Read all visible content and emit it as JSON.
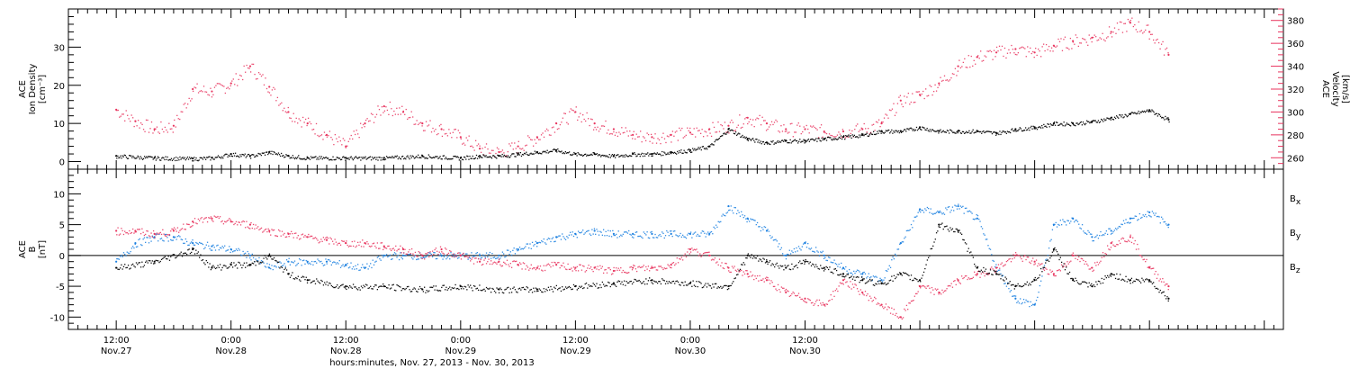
{
  "colors": {
    "black": "#000000",
    "pink": "#e8345e",
    "blue": "#1a7fe0"
  },
  "chart_data": [
    {
      "type": "scatter",
      "panel": "top",
      "ylabel_left": [
        "ACE",
        "Ion Density",
        "[cm⁻³]"
      ],
      "ylabel_right": [
        "ACE",
        "Velocity",
        "[km/s]"
      ],
      "ylim_left": [
        -2,
        40
      ],
      "yticks_left": [
        0,
        10,
        20,
        30
      ],
      "ylim_right": [
        250,
        390
      ],
      "yticks_right": [
        260,
        280,
        300,
        320,
        340,
        360,
        380
      ],
      "grid": false,
      "series": [
        {
          "axis": "left",
          "color": "#000000",
          "x_hours": [
            0,
            4,
            8,
            10,
            12,
            14,
            16,
            18,
            20,
            24,
            28,
            32,
            36,
            38,
            40,
            42,
            44,
            46,
            48,
            50,
            52,
            54,
            56,
            58,
            60,
            62,
            64,
            66,
            68,
            70,
            72,
            74,
            76,
            78,
            80,
            82,
            84,
            86,
            88,
            90,
            92,
            94,
            96,
            98,
            100,
            102,
            104,
            106,
            108,
            110
          ],
          "values": [
            1.5,
            1.0,
            0.8,
            1.0,
            2.0,
            1.5,
            2.5,
            1.5,
            1.0,
            1.0,
            1.0,
            1.5,
            1.0,
            1.5,
            1.5,
            2.0,
            2.5,
            3.0,
            2.0,
            2.0,
            1.5,
            2.0,
            2.0,
            2.5,
            3.0,
            4.0,
            8.5,
            6.0,
            5.0,
            5.5,
            5.5,
            6.0,
            6.5,
            7.0,
            8.0,
            8.0,
            9.0,
            8.0,
            8.0,
            8.0,
            7.5,
            8.5,
            9.0,
            10.0,
            10.0,
            10.5,
            11.5,
            12.5,
            13.5,
            11.0
          ]
        },
        {
          "axis": "right",
          "color": "#e8345e",
          "x_hours": [
            0,
            2,
            4,
            6,
            8,
            10,
            12,
            14,
            16,
            18,
            20,
            22,
            24,
            26,
            28,
            30,
            32,
            34,
            36,
            38,
            40,
            42,
            44,
            46,
            48,
            50,
            52,
            54,
            56,
            58,
            60,
            62,
            64,
            66,
            68,
            70,
            72,
            74,
            76,
            78,
            80,
            82,
            84,
            86,
            88,
            90,
            92,
            94,
            96,
            98,
            100,
            102,
            104,
            106,
            108,
            110
          ],
          "values": [
            302,
            292,
            285,
            288,
            320,
            318,
            325,
            340,
            322,
            300,
            290,
            280,
            270,
            290,
            305,
            300,
            290,
            285,
            278,
            268,
            265,
            270,
            278,
            290,
            300,
            290,
            285,
            280,
            278,
            280,
            282,
            285,
            288,
            295,
            290,
            285,
            285,
            283,
            283,
            285,
            290,
            310,
            315,
            325,
            340,
            348,
            352,
            355,
            352,
            358,
            362,
            365,
            370,
            378,
            370,
            350
          ]
        }
      ]
    },
    {
      "type": "scatter",
      "panel": "bottom",
      "ylabel": [
        "ACE",
        "B",
        "[nT]"
      ],
      "ylim": [
        -12,
        14
      ],
      "yticks": [
        -10,
        -5,
        0,
        5,
        10
      ],
      "zero_line": true,
      "grid": false,
      "legend": {
        "placement": "right",
        "entries": [
          {
            "name": "Bx",
            "base": "B",
            "sub": "x",
            "color": "#000000"
          },
          {
            "name": "By",
            "base": "B",
            "sub": "y",
            "color": "#1a7fe0"
          },
          {
            "name": "Bz",
            "base": "B",
            "sub": "z",
            "color": "#e8345e"
          }
        ]
      },
      "series": [
        {
          "name": "Bx",
          "color": "#000000",
          "x_hours": [
            0,
            4,
            8,
            10,
            12,
            14,
            16,
            18,
            20,
            24,
            28,
            32,
            36,
            40,
            44,
            48,
            52,
            56,
            60,
            64,
            66,
            68,
            70,
            72,
            74,
            76,
            78,
            80,
            82,
            84,
            86,
            88,
            90,
            92,
            94,
            96,
            98,
            100,
            102,
            104,
            106,
            108,
            110
          ],
          "values": [
            -2,
            -1,
            1,
            -2,
            -1.5,
            -1.5,
            0,
            -3,
            -4,
            -5,
            -5,
            -5.5,
            -5,
            -5.5,
            -5.5,
            -5,
            -4.5,
            -4,
            -4.5,
            -5,
            0,
            -1,
            -2,
            -1,
            -2,
            -3,
            -4,
            -4.5,
            -3,
            -4,
            5,
            4,
            -2,
            -3,
            -5,
            -4,
            1,
            -4,
            -5,
            -3,
            -4,
            -4,
            -7
          ]
        },
        {
          "name": "By",
          "color": "#1a7fe0",
          "x_hours": [
            0,
            2,
            4,
            6,
            8,
            10,
            12,
            14,
            16,
            18,
            20,
            22,
            24,
            26,
            28,
            30,
            32,
            34,
            36,
            38,
            40,
            42,
            44,
            46,
            48,
            50,
            52,
            54,
            56,
            58,
            60,
            62,
            64,
            66,
            68,
            70,
            72,
            74,
            76,
            78,
            80,
            82,
            84,
            86,
            88,
            90,
            92,
            94,
            96,
            98,
            100,
            102,
            104,
            106,
            108,
            110
          ],
          "values": [
            -1,
            2,
            3,
            3,
            2,
            1.5,
            1,
            0,
            -2,
            -1,
            -1,
            -1,
            -1.5,
            -2,
            0,
            0,
            0,
            0,
            0,
            0,
            0,
            1,
            2,
            3,
            3.5,
            4,
            3.5,
            3.5,
            3.5,
            3.5,
            3.5,
            3.5,
            8,
            6,
            4,
            0,
            2,
            0,
            -2,
            -3,
            -4,
            2,
            7.5,
            7,
            8,
            6,
            -2,
            -7,
            -8,
            5,
            6,
            3,
            4,
            6,
            7,
            5
          ]
        },
        {
          "name": "Bz",
          "color": "#e8345e",
          "x_hours": [
            0,
            2,
            4,
            6,
            8,
            10,
            12,
            14,
            16,
            18,
            20,
            22,
            24,
            26,
            28,
            30,
            32,
            34,
            36,
            38,
            40,
            42,
            44,
            46,
            48,
            50,
            52,
            54,
            56,
            58,
            60,
            62,
            64,
            66,
            68,
            70,
            72,
            74,
            76,
            78,
            80,
            82,
            84,
            86,
            88,
            90,
            92,
            94,
            96,
            98,
            100,
            102,
            104,
            106,
            108,
            110
          ],
          "values": [
            4,
            4,
            3.5,
            4,
            5.5,
            6,
            5.5,
            5,
            4,
            3.5,
            3,
            2.5,
            2,
            2,
            1.5,
            1,
            0,
            1,
            0,
            -1,
            -1,
            -1.5,
            -2,
            -1.5,
            -2,
            -2,
            -2.5,
            -2,
            -2,
            -1.5,
            1,
            0,
            -2,
            -3,
            -4,
            -6,
            -7,
            -8,
            -4,
            -6,
            -8,
            -10,
            -5,
            -6,
            -4,
            -3,
            -2,
            0,
            -1,
            -3,
            0,
            -2,
            2,
            3,
            -2,
            -5
          ]
        }
      ]
    }
  ],
  "x_axis": {
    "range_hours": [
      -5,
      122
    ],
    "ticks": [
      {
        "h": 0,
        "label": "12:00",
        "date": "Nov.27"
      },
      {
        "h": 12,
        "label": "0:00",
        "date": "Nov.28"
      },
      {
        "h": 24,
        "label": "12:00",
        "date": "Nov.28"
      },
      {
        "h": 36,
        "label": "0:00",
        "date": "Nov.29"
      },
      {
        "h": 48,
        "label": "12:00",
        "date": "Nov.29"
      },
      {
        "h": 60,
        "label": "0:00",
        "date": "Nov.30"
      },
      {
        "h": 72,
        "label": "12:00",
        "date": "Nov.30"
      }
    ],
    "title": "hours:minutes, Nov. 27, 2013 - Nov. 30, 2013"
  }
}
